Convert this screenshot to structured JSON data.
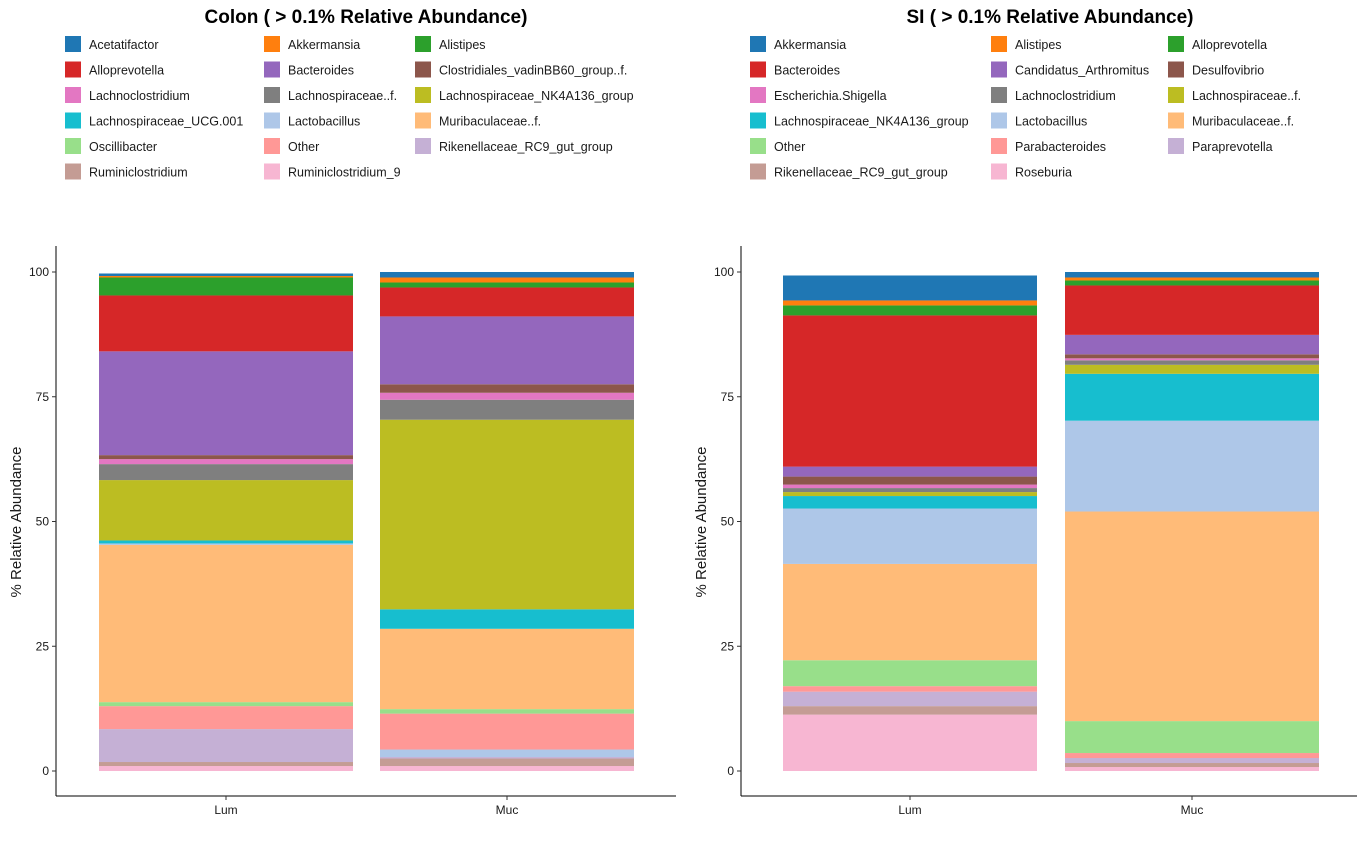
{
  "chart_data": [
    {
      "type": "bar",
      "stacked": true,
      "title": "Colon ( > 0.1% Relative Abundance)",
      "ylabel": "% Relative Abundance",
      "xlabel": "",
      "categories": [
        "Lum",
        "Muc"
      ],
      "ylim": [
        0,
        100
      ],
      "yticks": [
        0,
        25,
        50,
        75,
        100
      ],
      "legend_position": "top",
      "legend_entries": [
        {
          "name": "Acetatifactor",
          "color": "#1f77b4"
        },
        {
          "name": "Akkermansia",
          "color": "#ff7f0e"
        },
        {
          "name": "Alistipes",
          "color": "#2ca02c"
        },
        {
          "name": "Alloprevotella",
          "color": "#d62728"
        },
        {
          "name": "Bacteroides",
          "color": "#9467bd"
        },
        {
          "name": "Clostridiales_vadinBB60_group..f.",
          "color": "#8c564b"
        },
        {
          "name": "Lachnoclostridium",
          "color": "#e377c2"
        },
        {
          "name": "Lachnospiraceae..f.",
          "color": "#7f7f7f"
        },
        {
          "name": "Lachnospiraceae_NK4A136_group",
          "color": "#bcbd22"
        },
        {
          "name": "Lachnospiraceae_UCG.001",
          "color": "#17becf"
        },
        {
          "name": "Lactobacillus",
          "color": "#aec7e8"
        },
        {
          "name": "Muribaculaceae..f.",
          "color": "#ffbb78"
        },
        {
          "name": "Oscillibacter",
          "color": "#98df8a"
        },
        {
          "name": "Other",
          "color": "#ff9896"
        },
        {
          "name": "Rikenellaceae_RC9_gut_group",
          "color": "#c5b0d5"
        },
        {
          "name": "Ruminiclostridium",
          "color": "#c49c94"
        },
        {
          "name": "Ruminiclostridium_9",
          "color": "#f7b6d2"
        }
      ],
      "stacks": [
        [
          {
            "name": "Ruminiclostridium_9",
            "value": 1.0
          },
          {
            "name": "Ruminiclostridium",
            "value": 0.8
          },
          {
            "name": "Rikenellaceae_RC9_gut_group",
            "value": 6.6
          },
          {
            "name": "Other",
            "value": 4.6
          },
          {
            "name": "Oscillibacter",
            "value": 0.8
          },
          {
            "name": "Muribaculaceae..f.",
            "value": 31.5
          },
          {
            "name": "Lactobacillus",
            "value": 0.3
          },
          {
            "name": "Lachnospiraceae_UCG.001",
            "value": 0.6
          },
          {
            "name": "Lachnospiraceae_NK4A136_group",
            "value": 12.1
          },
          {
            "name": "Lachnospiraceae..f.",
            "value": 3.2
          },
          {
            "name": "Lachnoclostridium",
            "value": 1.0
          },
          {
            "name": "Clostridiales_vadinBB60_group..f.",
            "value": 0.8
          },
          {
            "name": "Bacteroides",
            "value": 20.8
          },
          {
            "name": "Alloprevotella",
            "value": 11.2
          },
          {
            "name": "Alistipes",
            "value": 3.6
          },
          {
            "name": "Akkermansia",
            "value": 0.3
          },
          {
            "name": "Acetatifactor",
            "value": 0.5
          }
        ],
        [
          {
            "name": "Ruminiclostridium_9",
            "value": 1.0
          },
          {
            "name": "Ruminiclostridium",
            "value": 1.5
          },
          {
            "name": "Rikenellaceae_RC9_gut_group",
            "value": 0.3
          },
          {
            "name": "Lactobacillus",
            "value": 1.5
          },
          {
            "name": "Other",
            "value": 7.2
          },
          {
            "name": "Oscillibacter",
            "value": 0.9
          },
          {
            "name": "Muribaculaceae..f.",
            "value": 16.1
          },
          {
            "name": "Lachnospiraceae_UCG.001",
            "value": 3.9
          },
          {
            "name": "Lachnospiraceae_NK4A136_group",
            "value": 38.0
          },
          {
            "name": "Lachnospiraceae..f.",
            "value": 4.0
          },
          {
            "name": "Lachnoclostridium",
            "value": 1.4
          },
          {
            "name": "Clostridiales_vadinBB60_group..f.",
            "value": 1.7
          },
          {
            "name": "Bacteroides",
            "value": 13.6
          },
          {
            "name": "Alloprevotella",
            "value": 5.8
          },
          {
            "name": "Alistipes",
            "value": 1.0
          },
          {
            "name": "Akkermansia",
            "value": 1.0
          },
          {
            "name": "Acetatifactor",
            "value": 1.1
          }
        ]
      ]
    },
    {
      "type": "bar",
      "stacked": true,
      "title": "SI ( > 0.1% Relative Abundance)",
      "ylabel": "% Relative Abundance",
      "xlabel": "",
      "categories": [
        "Lum",
        "Muc"
      ],
      "ylim": [
        0,
        100
      ],
      "yticks": [
        0,
        25,
        50,
        75,
        100
      ],
      "legend_position": "top",
      "legend_entries": [
        {
          "name": "Akkermansia",
          "color": "#1f77b4"
        },
        {
          "name": "Alistipes",
          "color": "#ff7f0e"
        },
        {
          "name": "Alloprevotella",
          "color": "#2ca02c"
        },
        {
          "name": "Bacteroides",
          "color": "#d62728"
        },
        {
          "name": "Candidatus_Arthromitus",
          "color": "#9467bd"
        },
        {
          "name": "Desulfovibrio",
          "color": "#8c564b"
        },
        {
          "name": "Escherichia.Shigella",
          "color": "#e377c2"
        },
        {
          "name": "Lachnoclostridium",
          "color": "#7f7f7f"
        },
        {
          "name": "Lachnospiraceae..f.",
          "color": "#bcbd22"
        },
        {
          "name": "Lachnospiraceae_NK4A136_group",
          "color": "#17becf"
        },
        {
          "name": "Lactobacillus",
          "color": "#aec7e8"
        },
        {
          "name": "Muribaculaceae..f.",
          "color": "#ffbb78"
        },
        {
          "name": "Other",
          "color": "#98df8a"
        },
        {
          "name": "Parabacteroides",
          "color": "#ff9896"
        },
        {
          "name": "Paraprevotella",
          "color": "#c5b0d5"
        },
        {
          "name": "Rikenellaceae_RC9_gut_group",
          "color": "#c49c94"
        },
        {
          "name": "Roseburia",
          "color": "#f7b6d2"
        }
      ],
      "stacks": [
        [
          {
            "name": "Roseburia",
            "value": 11.3
          },
          {
            "name": "Rikenellaceae_RC9_gut_group",
            "value": 1.7
          },
          {
            "name": "Paraprevotella",
            "value": 2.9
          },
          {
            "name": "Parabacteroides",
            "value": 1.1
          },
          {
            "name": "Other",
            "value": 5.2
          },
          {
            "name": "Muribaculaceae..f.",
            "value": 19.3
          },
          {
            "name": "Lactobacillus",
            "value": 11.1
          },
          {
            "name": "Lachnospiraceae_NK4A136_group",
            "value": 2.5
          },
          {
            "name": "Lachnospiraceae..f.",
            "value": 0.8
          },
          {
            "name": "Lachnoclostridium",
            "value": 0.8
          },
          {
            "name": "Escherichia.Shigella",
            "value": 0.7
          },
          {
            "name": "Desulfovibrio",
            "value": 1.6
          },
          {
            "name": "Candidatus_Arthromitus",
            "value": 2.0
          },
          {
            "name": "Bacteroides",
            "value": 30.3
          },
          {
            "name": "Alloprevotella",
            "value": 2.0
          },
          {
            "name": "Alistipes",
            "value": 1.0
          },
          {
            "name": "Akkermansia",
            "value": 5.0
          }
        ],
        [
          {
            "name": "Roseburia",
            "value": 0.8
          },
          {
            "name": "Rikenellaceae_RC9_gut_group",
            "value": 0.8
          },
          {
            "name": "Paraprevotella",
            "value": 1.0
          },
          {
            "name": "Parabacteroides",
            "value": 1.0
          },
          {
            "name": "Other",
            "value": 6.4
          },
          {
            "name": "Muribaculaceae..f.",
            "value": 42.0
          },
          {
            "name": "Lactobacillus",
            "value": 18.2
          },
          {
            "name": "Lachnospiraceae_NK4A136_group",
            "value": 9.4
          },
          {
            "name": "Lachnospiraceae..f.",
            "value": 1.8
          },
          {
            "name": "Lachnoclostridium",
            "value": 0.9
          },
          {
            "name": "Escherichia.Shigella",
            "value": 0.4
          },
          {
            "name": "Desulfovibrio",
            "value": 0.8
          },
          {
            "name": "Candidatus_Arthromitus",
            "value": 3.9
          },
          {
            "name": "Bacteroides",
            "value": 9.9
          },
          {
            "name": "Alloprevotella",
            "value": 1.0
          },
          {
            "name": "Alistipes",
            "value": 0.6
          },
          {
            "name": "Akkermansia",
            "value": 1.1
          }
        ]
      ]
    }
  ]
}
